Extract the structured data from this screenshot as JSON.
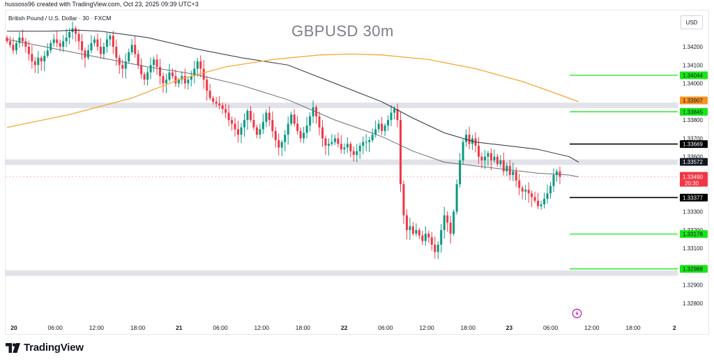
{
  "header": {
    "caption": "hussoss96 created with TradingView.com, Oct 23, 2025 09:39 UTC+3"
  },
  "symbol": {
    "description": "British Pound / U.S. Dollar · 30 · FXCM",
    "watermark": "GBPUSD 30m",
    "currency": "USD"
  },
  "brand": {
    "name": "TradingView"
  },
  "chart_data": {
    "type": "candlestick",
    "title": "GBPUSD 30m",
    "ylim": [
      1.3275,
      1.3435
    ],
    "y_ticks": [
      "1.34200",
      "1.34100",
      "1.34000",
      "1.33800",
      "1.33700",
      "1.33600",
      "1.33300",
      "1.33200",
      "1.33100",
      "1.32900",
      "1.32800"
    ],
    "x_ticks": [
      "20",
      "06:00",
      "12:00",
      "18:00",
      "21",
      "06:00",
      "12:00",
      "18:00",
      "22",
      "06:00",
      "12:00",
      "18:00",
      "23",
      "06:00",
      "12:00",
      "18:00",
      "2"
    ],
    "bull_color": "#089981",
    "bear_color": "#f23645",
    "close_path": [
      1.3423,
      1.3421,
      1.3418,
      1.3422,
      1.3425,
      1.3423,
      1.342,
      1.3416,
      1.3412,
      1.341,
      1.3414,
      1.3412,
      1.3415,
      1.3418,
      1.3422,
      1.3424,
      1.3422,
      1.342,
      1.3423,
      1.3425,
      1.3428,
      1.343,
      1.3427,
      1.3423,
      1.3418,
      1.3414,
      1.3418,
      1.3422,
      1.3424,
      1.342,
      1.3416,
      1.342,
      1.3424,
      1.3426,
      1.342,
      1.3414,
      1.341,
      1.3408,
      1.3412,
      1.3417,
      1.3421,
      1.3416,
      1.341,
      1.3405,
      1.3402,
      1.3406,
      1.341,
      1.3413,
      1.3409,
      1.3404,
      1.34,
      1.3402,
      1.3406,
      1.3404,
      1.34,
      1.3402,
      1.3404,
      1.34,
      1.3402,
      1.3404,
      1.3408,
      1.3412,
      1.3408,
      1.3402,
      1.3396,
      1.3392,
      1.339,
      1.3389,
      1.3388,
      1.3386,
      1.3384,
      1.338,
      1.3378,
      1.3375,
      1.3372,
      1.3376,
      1.338,
      1.3385,
      1.338,
      1.3376,
      1.3372,
      1.3375,
      1.3379,
      1.3384,
      1.338,
      1.3374,
      1.3369,
      1.3365,
      1.3368,
      1.3372,
      1.3378,
      1.3383,
      1.3378,
      1.3374,
      1.337,
      1.3373,
      1.3377,
      1.3382,
      1.3387,
      1.3382,
      1.3376,
      1.337,
      1.3366,
      1.3367,
      1.3368,
      1.337,
      1.3367,
      1.3364,
      1.3365,
      1.3367,
      1.3363,
      1.3361,
      1.3363,
      1.3366,
      1.3368,
      1.3368,
      1.3369,
      1.3372,
      1.3375,
      1.3378,
      1.3374,
      1.3377,
      1.338,
      1.3384,
      1.3386,
      1.338,
      1.3345,
      1.3328,
      1.332,
      1.3322,
      1.3318,
      1.332,
      1.3317,
      1.3314,
      1.3318,
      1.3316,
      1.3312,
      1.3308,
      1.3312,
      1.332,
      1.3328,
      1.3324,
      1.3318,
      1.333,
      1.3345,
      1.3358,
      1.3368,
      1.3372,
      1.3367,
      1.337,
      1.3366,
      1.336,
      1.3358,
      1.336,
      1.3362,
      1.3358,
      1.336,
      1.3356,
      1.3358,
      1.3352,
      1.3355,
      1.335,
      1.3352,
      1.3347,
      1.3343,
      1.3341,
      1.3342,
      1.334,
      1.3338,
      1.3336,
      1.3333,
      1.3334,
      1.3337,
      1.334,
      1.3344,
      1.335,
      1.3352,
      1.3349
    ],
    "series": [
      {
        "name": "EMA (black)",
        "color": "#2a2e39",
        "points": [
          [
            0,
            1.34285
          ],
          [
            14,
            1.34285
          ],
          [
            22,
            1.3429
          ],
          [
            30,
            1.34285
          ],
          [
            45,
            1.3425
          ],
          [
            60,
            1.3419
          ],
          [
            75,
            1.3414
          ],
          [
            90,
            1.341
          ],
          [
            105,
            1.34
          ],
          [
            120,
            1.339
          ],
          [
            130,
            1.3381
          ],
          [
            140,
            1.3373
          ],
          [
            150,
            1.3368
          ],
          [
            160,
            1.3366
          ],
          [
            170,
            1.3364
          ],
          [
            180,
            1.336
          ],
          [
            183,
            1.3357
          ]
        ]
      },
      {
        "name": "EMA (gray)",
        "color": "#6a6d78",
        "points": [
          [
            0,
            1.3424
          ],
          [
            15,
            1.3419
          ],
          [
            30,
            1.3414
          ],
          [
            45,
            1.3409
          ],
          [
            60,
            1.3405
          ],
          [
            75,
            1.3399
          ],
          [
            90,
            1.3391
          ],
          [
            105,
            1.338
          ],
          [
            120,
            1.3371
          ],
          [
            130,
            1.3363
          ],
          [
            140,
            1.3357
          ],
          [
            150,
            1.3355
          ],
          [
            160,
            1.3353
          ],
          [
            170,
            1.3351
          ],
          [
            180,
            1.335
          ],
          [
            183,
            1.3349
          ]
        ]
      },
      {
        "name": "EMA (orange)",
        "color": "#f7a735",
        "points": [
          [
            0,
            1.3376
          ],
          [
            20,
            1.3383
          ],
          [
            40,
            1.3392
          ],
          [
            55,
            1.3402
          ],
          [
            70,
            1.3409
          ],
          [
            85,
            1.3413
          ],
          [
            100,
            1.34155
          ],
          [
            110,
            1.3416
          ],
          [
            120,
            1.34155
          ],
          [
            135,
            1.3413
          ],
          [
            150,
            1.3408
          ],
          [
            165,
            1.3401
          ],
          [
            175,
            1.3395
          ],
          [
            183,
            1.339
          ]
        ]
      }
    ],
    "zones": [
      {
        "low": 1.33865,
        "high": 1.33895,
        "color": "#e1e3e8"
      },
      {
        "low": 1.33555,
        "high": 1.33585,
        "color": "#e1e3e8"
      },
      {
        "low": 1.3295,
        "high": 1.3298,
        "color": "#e1e3e8"
      }
    ],
    "levels": [
      {
        "price": 1.34044,
        "label": "1.34044",
        "color": "#19e619",
        "label_text_color": "#131722"
      },
      {
        "price": 1.33845,
        "label": "1.33845",
        "color": "#19e619",
        "label_text_color": "#131722"
      },
      {
        "price": 1.33669,
        "label": "1.33669",
        "color": "#000000",
        "label_text_color": "#ffffff"
      },
      {
        "price": 1.33377,
        "label": "1.33377",
        "color": "#000000",
        "label_text_color": "#ffffff"
      },
      {
        "price": 1.33178,
        "label": "1.33178",
        "color": "#19e619",
        "label_text_color": "#131722"
      },
      {
        "price": 1.32988,
        "label": "1.32988",
        "color": "#19e619",
        "label_text_color": "#131722"
      }
    ],
    "price_tags": [
      {
        "price": 1.33907,
        "label": "1.33907",
        "color": "#f7931e",
        "text_color": "#131722"
      },
      {
        "price": 1.33572,
        "label": "1.33572",
        "color": "#131722",
        "text_color": "#ffffff"
      },
      {
        "price": 1.33484,
        "label": "1.33484",
        "color": "#131722",
        "text_color": "#ffffff"
      }
    ],
    "current_price": {
      "price": 1.3349,
      "label": "1.33490",
      "countdown": "20:30",
      "color": "#f23645"
    }
  }
}
